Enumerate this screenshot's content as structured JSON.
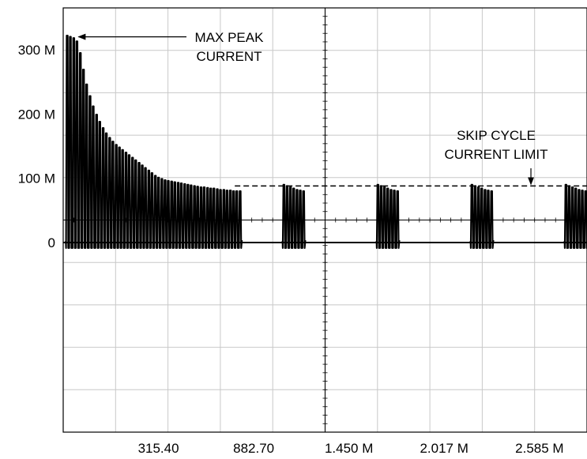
{
  "chart_data": {
    "type": "line",
    "title": "",
    "xlabel": "",
    "ylabel": "",
    "xlim": [
      -252.0,
      2868.0
    ],
    "ylim": [
      -295,
      365
    ],
    "x_ticks": [
      {
        "value": 315.4,
        "label": "315.40"
      },
      {
        "value": 882.7,
        "label": "882.70"
      },
      {
        "value": 1450.0,
        "label": "1.450 M"
      },
      {
        "value": 2017.0,
        "label": "2.017 M"
      },
      {
        "value": 2585.0,
        "label": "2.585 M"
      }
    ],
    "y_ticks": [
      {
        "value": 300,
        "label": "300 M"
      },
      {
        "value": 200,
        "label": "200 M"
      },
      {
        "value": 100,
        "label": "100 M"
      },
      {
        "value": 0,
        "label": "0"
      }
    ],
    "grid": true,
    "series": [
      {
        "style": "solid",
        "color": "#000000",
        "startup_pulses": {
          "x": [
            -228,
            -209,
            -189,
            -170,
            -150,
            -131,
            -112,
            -92,
            -73,
            -53,
            -34,
            -14,
            5,
            25,
            44,
            64,
            83,
            102,
            122,
            141,
            161,
            180,
            200,
            219,
            238,
            258,
            277,
            297,
            316,
            336,
            355,
            374,
            394,
            413,
            433,
            452,
            472,
            491,
            510,
            530,
            549,
            569,
            588,
            608,
            627,
            646,
            666,
            685,
            705,
            724,
            744,
            763,
            782,
            802
          ],
          "peak": [
            322,
            320,
            318,
            313,
            295,
            269,
            246,
            228,
            212,
            199,
            188,
            178,
            170,
            163,
            157,
            152,
            148,
            144,
            140,
            136,
            132,
            128,
            124,
            120,
            116,
            112,
            108,
            104,
            101,
            99,
            97,
            96,
            95,
            94,
            93,
            92,
            91,
            90,
            89,
            88,
            87,
            86,
            86,
            85,
            84,
            84,
            83,
            82,
            82,
            81,
            81,
            80,
            80,
            80
          ]
        },
        "bursts": [
          {
            "x": [
              1063,
              1082,
              1102,
              1121,
              1141,
              1160,
              1180
            ],
            "peak": [
              90,
              88,
              86,
              84,
              82,
              81,
              80
            ]
          },
          {
            "x": [
              1623,
              1642,
              1662,
              1681,
              1701,
              1720,
              1740
            ],
            "peak": [
              90,
              88,
              86,
              84,
              82,
              81,
              80
            ]
          },
          {
            "x": [
              2183,
              2202,
              2222,
              2241,
              2261,
              2280,
              2300
            ],
            "peak": [
              90,
              88,
              86,
              84,
              82,
              81,
              80
            ]
          },
          {
            "x": [
              2743,
              2762,
              2782,
              2801,
              2821,
              2840,
              2860
            ],
            "peak": [
              90,
              88,
              86,
              84,
              82,
              81,
              80
            ]
          }
        ]
      },
      {
        "style": "dashed",
        "color": "#000000",
        "x": [
          770,
          2868
        ],
        "y": [
          88,
          88
        ]
      }
    ],
    "annotations": [
      {
        "lines": [
          "MAX PEAK",
          "CURRENT"
        ],
        "arrow_to": {
          "x": -175,
          "y": 320
        }
      },
      {
        "lines": [
          "SKIP CYCLE",
          "CURRENT LIMIT"
        ],
        "arrow_to": {
          "x": 2534,
          "y": 88
        }
      }
    ]
  }
}
